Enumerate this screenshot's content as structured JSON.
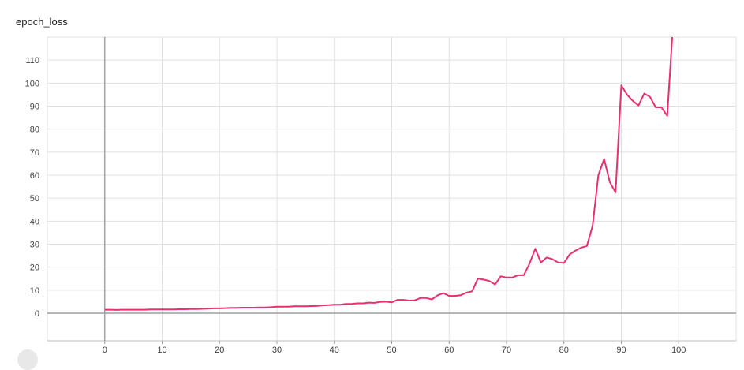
{
  "chart_data": {
    "type": "line",
    "title": "epoch_loss",
    "xlabel": "",
    "ylabel": "",
    "xlim": [
      -10,
      110
    ],
    "ylim": [
      -12,
      120
    ],
    "x_ticks": [
      0,
      10,
      20,
      30,
      40,
      50,
      60,
      70,
      80,
      90,
      100
    ],
    "y_ticks": [
      0,
      10,
      20,
      30,
      40,
      50,
      60,
      70,
      80,
      90,
      100,
      110
    ],
    "grid": true,
    "line_color": "#e8306e",
    "series": [
      {
        "x": [
          0,
          1,
          2,
          3,
          4,
          5,
          6,
          7,
          8,
          9,
          10,
          11,
          12,
          13,
          14,
          15,
          16,
          17,
          18,
          19,
          20,
          21,
          22,
          23,
          24,
          25,
          26,
          27,
          28,
          29,
          30,
          31,
          32,
          33,
          34,
          35,
          36,
          37,
          38,
          39,
          40,
          41,
          42,
          43,
          44,
          45,
          46,
          47,
          48,
          49,
          50,
          51,
          52,
          53,
          54,
          55,
          56,
          57,
          58,
          59,
          60,
          61,
          62,
          63,
          64,
          65,
          66,
          67,
          68,
          69,
          70,
          71,
          72,
          73,
          74,
          75,
          76,
          77,
          78,
          79,
          80,
          81,
          82,
          83,
          84,
          85,
          86,
          87,
          88,
          89,
          90,
          91,
          92,
          93,
          94,
          95,
          96,
          97,
          98,
          99
        ],
        "values": [
          1.5,
          1.5,
          1.4,
          1.5,
          1.5,
          1.5,
          1.5,
          1.5,
          1.6,
          1.6,
          1.6,
          1.6,
          1.6,
          1.7,
          1.7,
          1.8,
          1.8,
          1.9,
          2.0,
          2.1,
          2.1,
          2.2,
          2.3,
          2.3,
          2.4,
          2.4,
          2.4,
          2.5,
          2.5,
          2.6,
          2.8,
          2.8,
          2.8,
          3.0,
          3.0,
          3.0,
          3.1,
          3.2,
          3.4,
          3.5,
          3.7,
          3.7,
          4.0,
          4.0,
          4.3,
          4.3,
          4.6,
          4.5,
          4.9,
          5.0,
          4.7,
          5.8,
          5.8,
          5.5,
          5.6,
          6.6,
          6.6,
          6.0,
          7.8,
          8.7,
          7.5,
          7.5,
          7.8,
          8.9,
          9.5,
          15.0,
          14.6,
          14.0,
          12.5,
          16.0,
          15.5,
          15.5,
          16.5,
          16.5,
          21.5,
          28.0,
          22.0,
          24.2,
          23.5,
          22.0,
          21.8,
          25.5,
          27.2,
          28.5,
          29.2,
          38.0,
          60.0,
          67.0,
          57.0,
          52.5,
          99.0,
          95.0,
          92.3,
          90.3,
          95.5,
          94.0,
          89.5,
          89.5,
          85.8,
          125.0
        ]
      }
    ]
  }
}
